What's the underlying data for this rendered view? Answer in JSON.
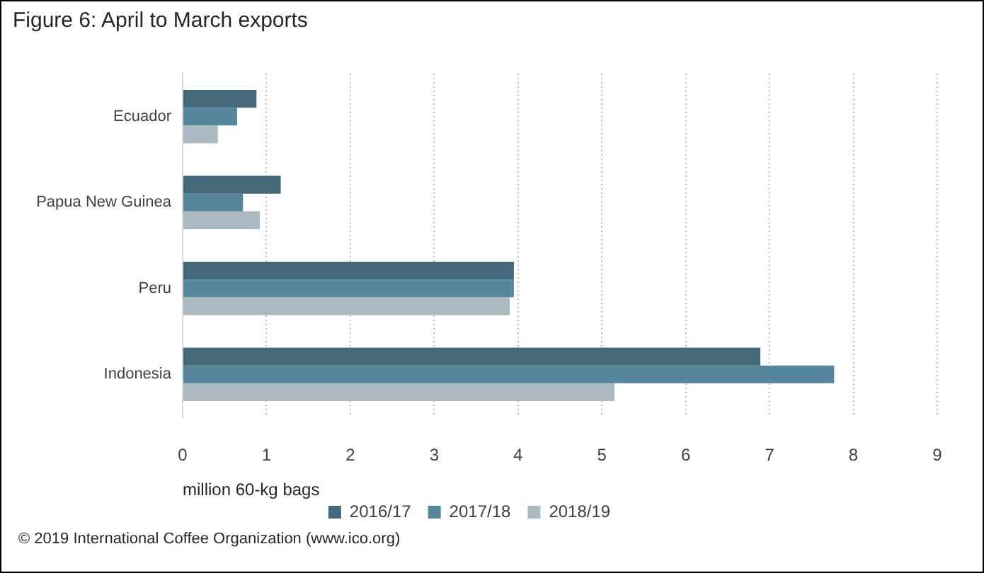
{
  "chart_data": {
    "type": "bar",
    "orientation": "horizontal",
    "title": "Figure 6: April to March exports",
    "xlabel": "million 60-kg bags",
    "categories": [
      "Ecuador",
      "Papua New Guinea",
      "Peru",
      "Indonesia"
    ],
    "series": [
      {
        "name": "2016/17",
        "color": "#45687a",
        "values": [
          0.88,
          1.17,
          3.95,
          6.89
        ]
      },
      {
        "name": "2017/18",
        "color": "#55869b",
        "values": [
          0.65,
          0.72,
          3.95,
          7.77
        ]
      },
      {
        "name": "2018/19",
        "color": "#aab9c2",
        "values": [
          0.42,
          0.92,
          3.9,
          5.15
        ]
      }
    ],
    "xlim": [
      0,
      9
    ],
    "xticks": [
      0,
      1,
      2,
      3,
      4,
      5,
      6,
      7,
      8,
      9
    ],
    "grid": "x",
    "legend": "bottom",
    "annotations": [
      "© 2019 International Coffee Organization (www.ico.org)"
    ]
  }
}
